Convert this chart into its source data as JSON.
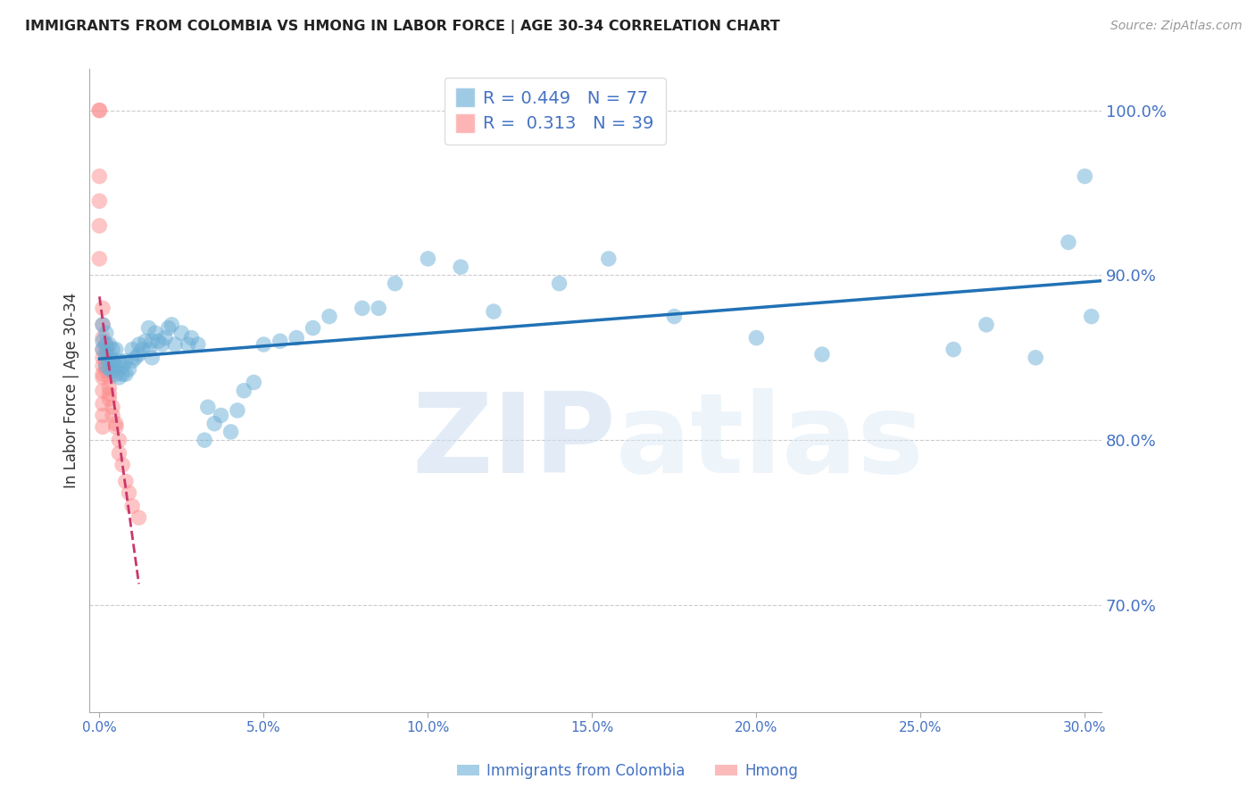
{
  "title": "IMMIGRANTS FROM COLOMBIA VS HMONG IN LABOR FORCE | AGE 30-34 CORRELATION CHART",
  "source": "Source: ZipAtlas.com",
  "ylabel": "In Labor Force | Age 30-34",
  "xlim": [
    -0.003,
    0.305
  ],
  "ylim": [
    0.635,
    1.025
  ],
  "xticks": [
    0.0,
    0.05,
    0.1,
    0.15,
    0.2,
    0.25,
    0.3
  ],
  "xtick_labels": [
    "0.0%",
    "5.0%",
    "10.0%",
    "15.0%",
    "20.0%",
    "25.0%",
    "30.0%"
  ],
  "ytick_labels": [
    "70.0%",
    "80.0%",
    "90.0%",
    "100.0%"
  ],
  "yticks": [
    0.7,
    0.8,
    0.9,
    1.0
  ],
  "colombia_R": 0.449,
  "colombia_N": 77,
  "hmong_R": 0.313,
  "hmong_N": 39,
  "colombia_color": "#6baed6",
  "hmong_color": "#fc8d8d",
  "line_color_colombia": "#2171b5",
  "line_color_hmong": "#c9366e",
  "legend_label_colombia": "Immigrants from Colombia",
  "legend_label_hmong": "Hmong",
  "watermark_zip": "ZIP",
  "watermark_atlas": "atlas",
  "title_color": "#222222",
  "axis_color": "#4472c4",
  "colombia_x": [
    0.001,
    0.001,
    0.001,
    0.002,
    0.002,
    0.002,
    0.002,
    0.003,
    0.003,
    0.003,
    0.003,
    0.004,
    0.004,
    0.004,
    0.004,
    0.005,
    0.005,
    0.005,
    0.006,
    0.006,
    0.007,
    0.007,
    0.008,
    0.008,
    0.009,
    0.01,
    0.01,
    0.011,
    0.012,
    0.012,
    0.013,
    0.014,
    0.015,
    0.015,
    0.016,
    0.016,
    0.017,
    0.018,
    0.019,
    0.02,
    0.021,
    0.022,
    0.023,
    0.025,
    0.027,
    0.028,
    0.03,
    0.032,
    0.033,
    0.035,
    0.037,
    0.04,
    0.042,
    0.044,
    0.047,
    0.05,
    0.055,
    0.06,
    0.065,
    0.07,
    0.08,
    0.085,
    0.09,
    0.1,
    0.11,
    0.12,
    0.14,
    0.155,
    0.175,
    0.2,
    0.22,
    0.26,
    0.27,
    0.285,
    0.295,
    0.3,
    0.302
  ],
  "colombia_y": [
    0.855,
    0.86,
    0.87,
    0.845,
    0.852,
    0.858,
    0.865,
    0.843,
    0.848,
    0.852,
    0.858,
    0.842,
    0.845,
    0.848,
    0.855,
    0.84,
    0.845,
    0.855,
    0.838,
    0.848,
    0.84,
    0.845,
    0.84,
    0.848,
    0.843,
    0.848,
    0.855,
    0.85,
    0.852,
    0.858,
    0.855,
    0.86,
    0.855,
    0.868,
    0.85,
    0.86,
    0.865,
    0.86,
    0.858,
    0.862,
    0.868,
    0.87,
    0.858,
    0.865,
    0.858,
    0.862,
    0.858,
    0.8,
    0.82,
    0.81,
    0.815,
    0.805,
    0.818,
    0.83,
    0.835,
    0.858,
    0.86,
    0.862,
    0.868,
    0.875,
    0.88,
    0.88,
    0.895,
    0.91,
    0.905,
    0.878,
    0.895,
    0.91,
    0.875,
    0.862,
    0.852,
    0.855,
    0.87,
    0.85,
    0.92,
    0.96,
    0.875
  ],
  "hmong_x": [
    0.0,
    0.0,
    0.0,
    0.0,
    0.0,
    0.0,
    0.001,
    0.001,
    0.001,
    0.001,
    0.001,
    0.001,
    0.001,
    0.001,
    0.001,
    0.001,
    0.001,
    0.001,
    0.002,
    0.002,
    0.002,
    0.002,
    0.002,
    0.002,
    0.003,
    0.003,
    0.003,
    0.003,
    0.004,
    0.004,
    0.005,
    0.005,
    0.006,
    0.006,
    0.007,
    0.008,
    0.009,
    0.01,
    0.012
  ],
  "hmong_y": [
    1.0,
    1.0,
    0.96,
    0.945,
    0.93,
    0.91,
    0.88,
    0.87,
    0.862,
    0.855,
    0.85,
    0.845,
    0.84,
    0.838,
    0.83,
    0.822,
    0.815,
    0.808,
    0.858,
    0.855,
    0.852,
    0.848,
    0.845,
    0.842,
    0.838,
    0.832,
    0.828,
    0.825,
    0.82,
    0.815,
    0.81,
    0.808,
    0.8,
    0.792,
    0.785,
    0.775,
    0.768,
    0.76,
    0.753
  ]
}
